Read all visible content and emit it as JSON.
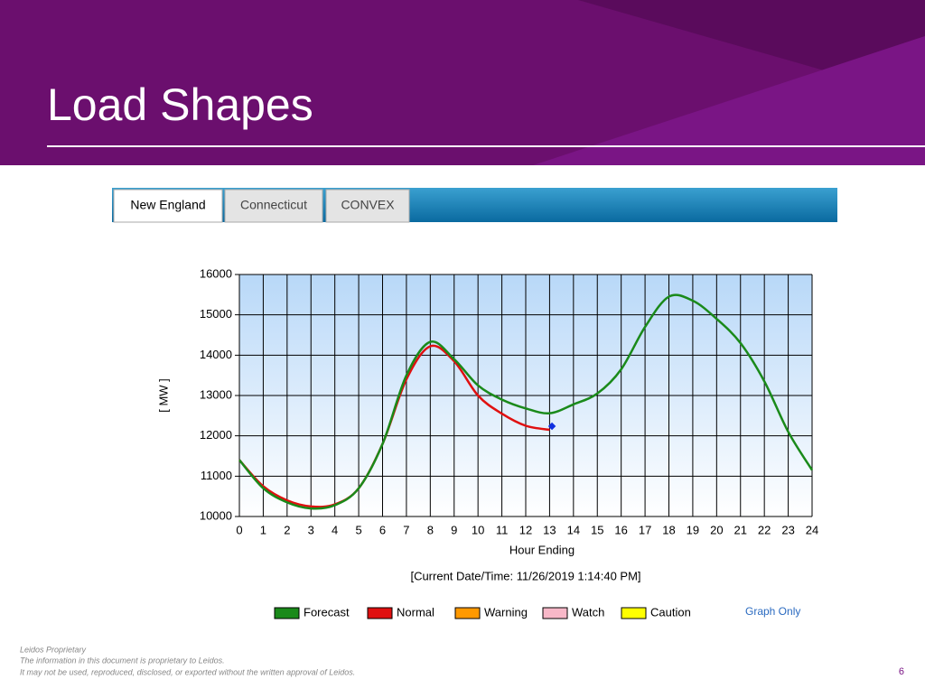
{
  "header": {
    "title": "Load Shapes"
  },
  "tabs": [
    "New England",
    "Connecticut",
    "CONVEX"
  ],
  "chart_data": {
    "type": "line",
    "x_label": "Hour Ending",
    "y_label": "[ MW ]",
    "annotation": "[Current Date/Time: 11/26/2019 1:14:40 PM]",
    "xlim": [
      0,
      24
    ],
    "xticks": [
      0,
      1,
      2,
      3,
      4,
      5,
      6,
      7,
      8,
      9,
      10,
      11,
      12,
      13,
      14,
      15,
      16,
      17,
      18,
      19,
      20,
      21,
      22,
      23,
      24
    ],
    "ylim": [
      10000,
      16000
    ],
    "yticks": [
      10000,
      11000,
      12000,
      13000,
      14000,
      15000,
      16000
    ],
    "grid": true,
    "series": [
      {
        "name": "Forecast",
        "color": "#1a8a1a",
        "x": [
          0,
          1,
          2,
          3,
          4,
          5,
          6,
          7,
          8,
          9,
          10,
          11,
          12,
          13,
          14,
          15,
          16,
          17,
          18,
          19,
          20,
          21,
          22,
          23,
          24
        ],
        "values": [
          11400,
          10700,
          10350,
          10200,
          10280,
          10700,
          11800,
          13500,
          14330,
          13900,
          13250,
          12900,
          12680,
          12560,
          12780,
          13050,
          13650,
          14700,
          15450,
          15350,
          14900,
          14300,
          13350,
          12100,
          11150
        ]
      },
      {
        "name": "Normal",
        "color": "#e01010",
        "x": [
          0,
          1,
          2,
          3,
          4,
          5,
          6,
          7,
          8,
          9,
          10,
          11,
          12,
          13
        ],
        "values": [
          11400,
          10750,
          10400,
          10250,
          10300,
          10700,
          11800,
          13400,
          14220,
          13850,
          13000,
          12550,
          12250,
          12150
        ]
      },
      {
        "name": "Warning",
        "color": "#ff9900",
        "x": [],
        "values": []
      },
      {
        "name": "Watch",
        "color": "#f8b8c8",
        "x": [],
        "values": []
      },
      {
        "name": "Caution",
        "color": "#ffff00",
        "x": [],
        "values": []
      }
    ],
    "current_point": {
      "x": 13.1,
      "y": 12240,
      "color": "#1030e0"
    }
  },
  "graph_only": "Graph Only",
  "footer": {
    "lines": [
      "Leidos Proprietary",
      "The information in this document is proprietary to Leidos.",
      "It may not be used, reproduced, disclosed, or exported without the written approval of Leidos."
    ],
    "page": "6"
  }
}
